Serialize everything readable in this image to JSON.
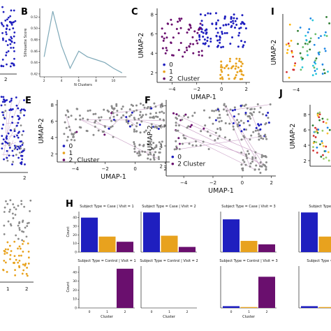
{
  "panel_letters": [
    "B",
    "C",
    "E",
    "F",
    "H",
    "I",
    "J"
  ],
  "colors": {
    "cluster0": "#1f1fbf",
    "cluster1": "#e8a21e",
    "cluster2": "#6a0f6e",
    "grey_points": "#8a8a8a",
    "line_b": "#7fa9b8",
    "link_lines": "#c9a0c6"
  },
  "chart_data": [
    {
      "panel": "B",
      "type": "line",
      "x": [
        2,
        3,
        4,
        5,
        6,
        7,
        8,
        9,
        10,
        11
      ],
      "y": [
        0.45,
        0.53,
        0.47,
        0.43,
        0.46,
        0.45,
        0.445,
        0.44,
        0.43,
        0.422
      ],
      "xlabel": "N Clusters",
      "ylabel": "Silhouette Score",
      "xticks": [
        "2",
        "4",
        "6",
        "8",
        "10"
      ],
      "yticks": [
        "0.42",
        "0.44",
        "0.46",
        "0.48",
        "0.50",
        "0.52"
      ],
      "ylim": [
        0.415,
        0.535
      ]
    },
    {
      "panel": "C",
      "type": "scatter",
      "xlabel": "UMAP-1",
      "ylabel": "UMAP-2",
      "xticks": [
        "-4",
        "-2",
        "0",
        "2"
      ],
      "yticks": [
        "2",
        "4",
        "6",
        "8"
      ],
      "xlim": [
        -5.2,
        2.3
      ],
      "ylim": [
        1.0,
        8.6
      ],
      "legend": {
        "labels": [
          "0",
          "1",
          "2"
        ],
        "title": "Cluster"
      },
      "clusters": [
        {
          "label": "0",
          "approx_region": {
            "x": [
              -1.8,
              2.0
            ],
            "y": [
              4.5,
              8.2
            ]
          },
          "n": 90
        },
        {
          "label": "1",
          "approx_region": {
            "x": [
              -0.2,
              1.8
            ],
            "y": [
              1.3,
              3.5
            ]
          },
          "n": 40
        },
        {
          "label": "2",
          "approx_region": {
            "x": [
              -4.9,
              -1.4
            ],
            "y": [
              3.5,
              7.6
            ]
          },
          "n": 55
        }
      ]
    },
    {
      "panel": "E",
      "type": "scatter",
      "xlabel": "UMAP-1",
      "ylabel": "UMAP-2",
      "xticks": [
        "-4",
        "-2",
        "0",
        "2"
      ],
      "yticks": [
        "2",
        "4",
        "6",
        "8"
      ],
      "legend": {
        "labels": [
          "0",
          "1",
          "2"
        ],
        "title": "Cluster"
      }
    },
    {
      "panel": "F",
      "type": "scatter",
      "xlabel": "UMAP-1",
      "ylabel": "UMAP-2",
      "xticks": [
        "-4",
        "-2",
        "0",
        "2"
      ],
      "yticks": [
        "2",
        "4",
        "6",
        "8"
      ],
      "legend": {
        "labels": [
          "0",
          "2"
        ],
        "title": "Cluster"
      }
    },
    {
      "panel": "H",
      "type": "bar",
      "categories": [
        "0",
        "1",
        "2"
      ],
      "xlabel": "Cluster",
      "ylabel": "Count",
      "yticks": [
        "0",
        "10",
        "20",
        "30",
        "40"
      ],
      "ylim": [
        0,
        47
      ],
      "facets": [
        {
          "title": "Subject Type = Case | Visit = 1",
          "values": [
            40,
            18,
            12
          ]
        },
        {
          "title": "Subject Type = Case | Visit = 2",
          "values": [
            46,
            19,
            6
          ]
        },
        {
          "title": "Subject Type = Case | Visit = 3",
          "values": [
            38,
            13,
            9
          ]
        },
        {
          "title": "Subject Type = Case",
          "values": [
            46,
            18,
            10
          ]
        },
        {
          "title": "Subject Type = Control | Visit = 1",
          "values": [
            0,
            0,
            44
          ]
        },
        {
          "title": "Subject Type = Control | Visit = 2",
          "values": [
            0,
            0,
            0
          ]
        },
        {
          "title": "Subject Type = Control | Visit = 3",
          "values": [
            2,
            1,
            35
          ]
        },
        {
          "title": "Subject Type = Control",
          "values": [
            2,
            1,
            30
          ]
        }
      ]
    },
    {
      "panel": "I",
      "type": "scatter",
      "ylabel": "UMAP-2",
      "xticks": [
        "-4"
      ]
    },
    {
      "panel": "J",
      "type": "scatter",
      "ylabel": "UMAP-2",
      "yticks": [
        "2",
        "4",
        "6",
        "8"
      ]
    }
  ]
}
